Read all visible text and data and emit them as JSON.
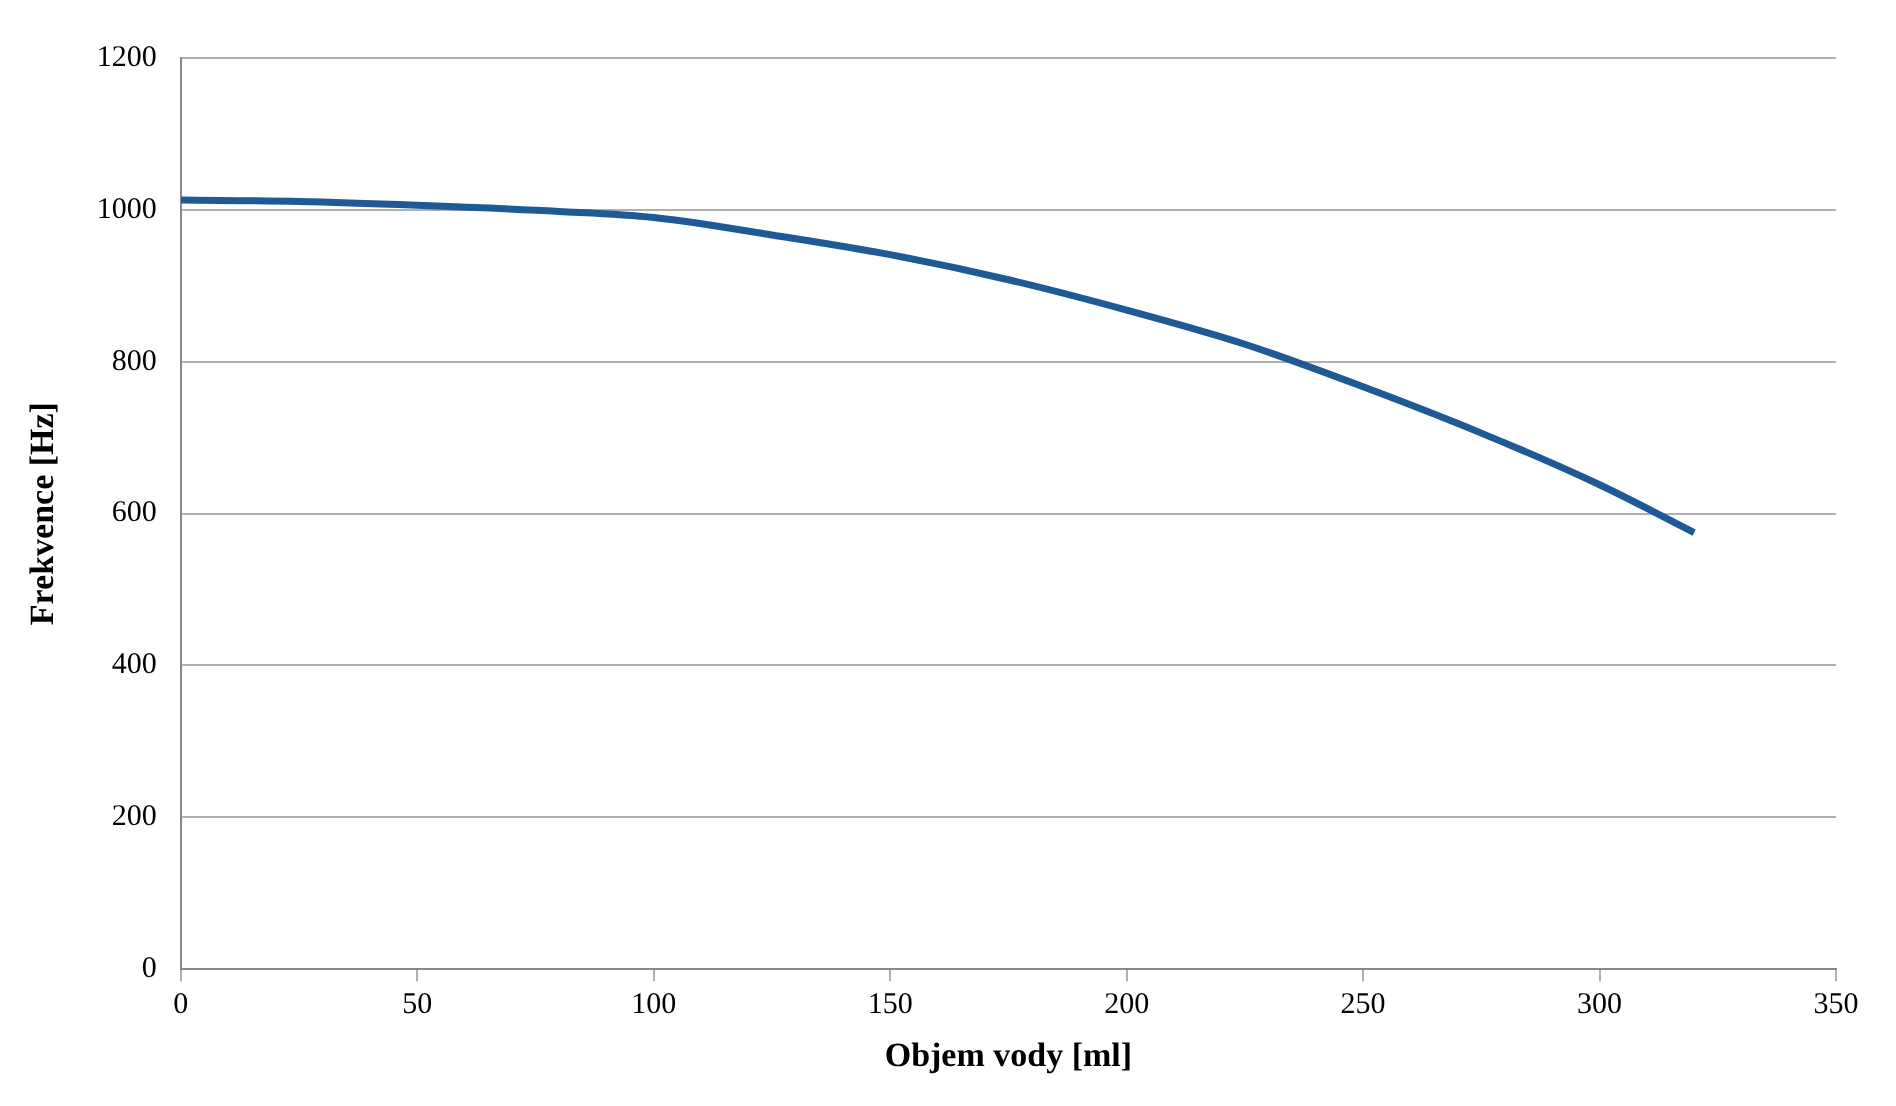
{
  "chart_data": {
    "type": "line",
    "xlabel": "Objem vody [ml]",
    "ylabel": "Frekvence [Hz]",
    "x": [
      0,
      25,
      50,
      80,
      100,
      125,
      150,
      175,
      200,
      225,
      250,
      275,
      300,
      320
    ],
    "series": [
      {
        "color": "#1f5a96",
        "values": [
          1013,
          1011,
          1006,
          998,
          990,
          967,
          941,
          908,
          868,
          823,
          767,
          706,
          638,
          575
        ]
      }
    ],
    "xlim": [
      0,
      350
    ],
    "xticks": [
      0,
      50,
      100,
      150,
      200,
      250,
      300,
      350
    ],
    "ylim": [
      0,
      1200
    ],
    "yticks": [
      0,
      200,
      400,
      600,
      800,
      1000,
      1200
    ],
    "grid": "y",
    "legend": false,
    "marker": "none",
    "line_style": "solid"
  }
}
